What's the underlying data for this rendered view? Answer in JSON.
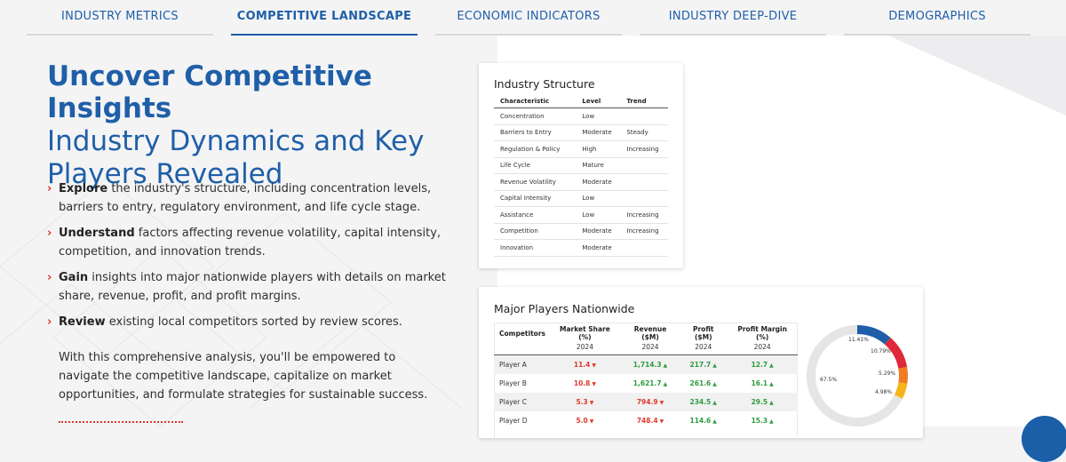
{
  "tabs": [
    {
      "label": "INDUSTRY METRICS",
      "active": false
    },
    {
      "label": "COMPETITIVE LANDSCAPE",
      "active": true
    },
    {
      "label": "ECONOMIC INDICATORS",
      "active": false
    },
    {
      "label": "INDUSTRY DEEP-DIVE",
      "active": false
    },
    {
      "label": "DEMOGRAPHICS",
      "active": false
    }
  ],
  "hero": {
    "title": "Uncover Competitive Insights",
    "subtitle": "Industry Dynamics and Key Players Revealed"
  },
  "bullets": [
    {
      "bold": "Explore",
      "text": " the industry's structure, including concentration levels, barriers to entry, regulatory environment, and life cycle stage."
    },
    {
      "bold": "Understand",
      "text": " factors affecting revenue volatility, capital intensity, competition, and innovation trends."
    },
    {
      "bold": "Gain",
      "text": " insights into major nationwide players with details on market share, revenue, profit, and profit margins."
    },
    {
      "bold": "Review",
      "text": " existing local competitors sorted by review scores."
    }
  ],
  "bullet_marker": "›",
  "paragraph": "With this comprehensive analysis, you'll be empowered to navigate the competitive landscape, capitalize on market opportunities, and formulate strategies for sustainable success.",
  "structure": {
    "title": "Industry Structure",
    "headers": [
      "Characteristic",
      "Level",
      "Trend"
    ],
    "rows": [
      {
        "c": "Concentration",
        "l": "Low",
        "lc": "low",
        "t": "",
        "tc": ""
      },
      {
        "c": "Barriers to Entry",
        "l": "Moderate",
        "lc": "mod",
        "t": "Steady",
        "tc": "steady"
      },
      {
        "c": "Regulation & Policy",
        "l": "High",
        "lc": "high",
        "t": "Increasing",
        "tc": "inc"
      },
      {
        "c": "Life Cycle",
        "l": "Mature",
        "lc": "mod",
        "t": "",
        "tc": ""
      },
      {
        "c": "Revenue Volatility",
        "l": "Moderate",
        "lc": "mod",
        "t": "",
        "tc": ""
      },
      {
        "c": "Capital Intensity",
        "l": "Low",
        "lc": "low",
        "t": "",
        "tc": ""
      },
      {
        "c": "Assistance",
        "l": "Low",
        "lc": "low",
        "t": "Increasing",
        "tc": "inc-g"
      },
      {
        "c": "Competition",
        "l": "Moderate",
        "lc": "mod",
        "t": "Increasing",
        "tc": "inc"
      },
      {
        "c": "Innovation",
        "l": "Moderate",
        "lc": "mod",
        "t": "",
        "tc": ""
      }
    ]
  },
  "players": {
    "title": "Major Players Nationwide",
    "headers": [
      "Competitors",
      "Market Share (%)",
      "Revenue ($M)",
      "Profit ($M)",
      "Profit Margin (%)"
    ],
    "year": "2024",
    "rows": [
      {
        "name": "Player A",
        "share": "11.4",
        "share_dir": "down",
        "rev": "1,714.3",
        "rev_dir": "up",
        "profit": "217.7",
        "profit_dir": "up",
        "margin": "12.7",
        "margin_dir": "up"
      },
      {
        "name": "Player B",
        "share": "10.8",
        "share_dir": "down",
        "rev": "1,621.7",
        "rev_dir": "up",
        "profit": "261.6",
        "profit_dir": "up",
        "margin": "16.1",
        "margin_dir": "up"
      },
      {
        "name": "Player C",
        "share": "5.3",
        "share_dir": "down",
        "rev": "794.9",
        "rev_dir": "down",
        "profit": "234.5",
        "profit_dir": "up",
        "margin": "29.5",
        "margin_dir": "up"
      },
      {
        "name": "Player D",
        "share": "5.0",
        "share_dir": "down",
        "rev": "748.4",
        "rev_dir": "down",
        "profit": "114.6",
        "profit_dir": "up",
        "margin": "15.3",
        "margin_dir": "up"
      }
    ],
    "arrow_up": "▲",
    "arrow_down": "▼"
  },
  "donut": {
    "slices": [
      {
        "label": "11.41%",
        "value": 11.41,
        "color": "#1f5fa8"
      },
      {
        "label": "10.79%",
        "value": 10.79,
        "color": "#e0283a"
      },
      {
        "label": "5.29%",
        "value": 5.29,
        "color": "#f07b22"
      },
      {
        "label": "4.98%",
        "value": 4.98,
        "color": "#f5b418"
      },
      {
        "label": "67.5%",
        "value": 67.5,
        "color": "#e5e5e5"
      }
    ]
  },
  "colors": {
    "brand": "#1f5fa8",
    "accent_red": "#d9362b",
    "positive": "#2e9b3e",
    "negative": "#e03a2c"
  }
}
